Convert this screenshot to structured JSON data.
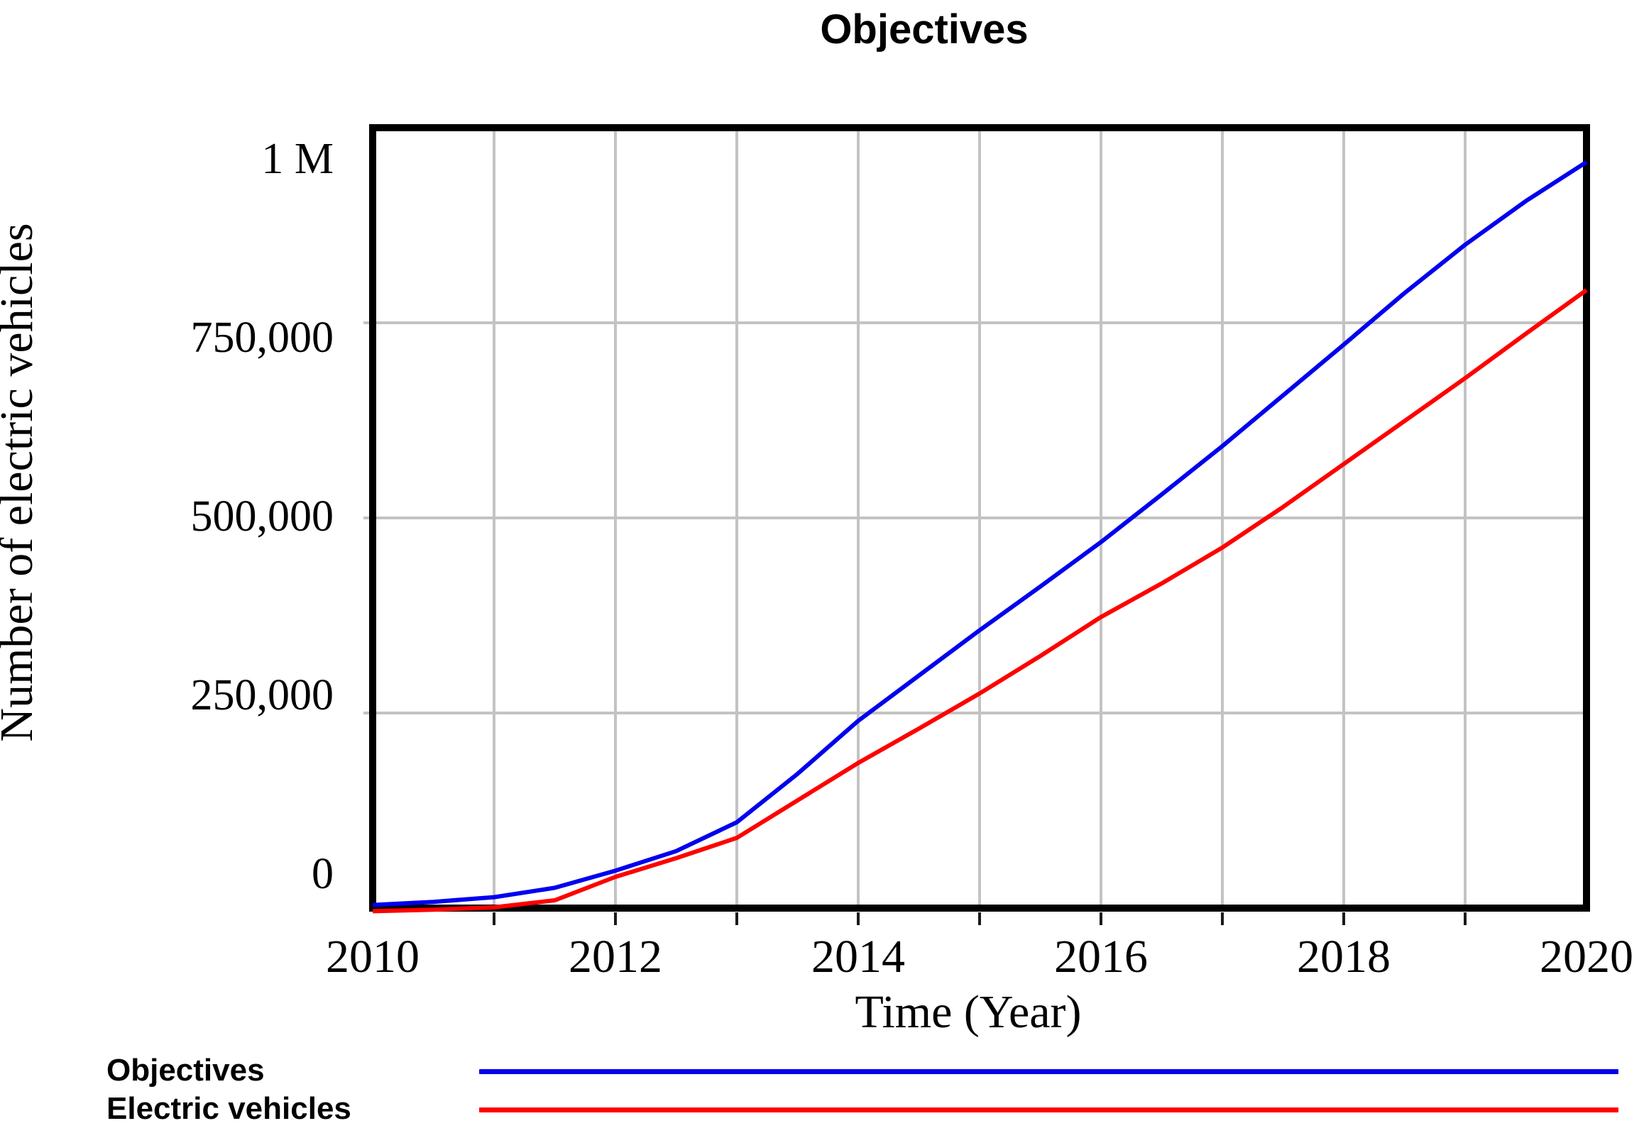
{
  "title": "Objectives",
  "chart_data": {
    "type": "line",
    "title": "Objectives",
    "xlabel": "Time (Year)",
    "ylabel": "Number of electric vehicles",
    "xlim": [
      2010,
      2020
    ],
    "ylim": [
      0,
      1000000
    ],
    "grid": true,
    "x_tick_values": [
      2010,
      2012,
      2014,
      2016,
      2018,
      2020
    ],
    "x_tick_labels": [
      "2010",
      "2012",
      "2014",
      "2016",
      "2018",
      "2020"
    ],
    "y_tick_values": [
      1000000,
      750000,
      500000,
      250000,
      0
    ],
    "y_tick_labels": [
      "1 M",
      "750,000",
      "500,000",
      "250,000",
      "0"
    ],
    "grid_color": "#c3c3c3",
    "frame_color": "#000000",
    "x": [
      2010,
      2010.5,
      2011,
      2011.5,
      2012,
      2012.5,
      2013,
      2013.5,
      2014,
      2014.5,
      2015,
      2015.5,
      2016,
      2016.5,
      2017,
      2017.5,
      2018,
      2018.5,
      2019,
      2019.5,
      2020
    ],
    "series": [
      {
        "name": "Objectives",
        "color": "#0000ee",
        "values": [
          4000,
          8000,
          14000,
          26000,
          48000,
          73000,
          110000,
          172000,
          240000,
          298000,
          356000,
          412000,
          469000,
          530000,
          592000,
          657000,
          722000,
          788000,
          850000,
          906000,
          956000
        ]
      },
      {
        "name": "Electric vehicles",
        "color": "#ff0000",
        "values": [
          -4000,
          -2000,
          1000,
          10000,
          40000,
          64000,
          90000,
          138000,
          186000,
          230000,
          275000,
          323000,
          373000,
          416000,
          462000,
          514000,
          569000,
          624000,
          679000,
          736000,
          792000
        ]
      }
    ],
    "legend_position": "bottom-left"
  },
  "legend": {
    "items": [
      {
        "label": "Objectives",
        "color": "#0000ee"
      },
      {
        "label": "Electric vehicles",
        "color": "#ff0000"
      }
    ]
  }
}
